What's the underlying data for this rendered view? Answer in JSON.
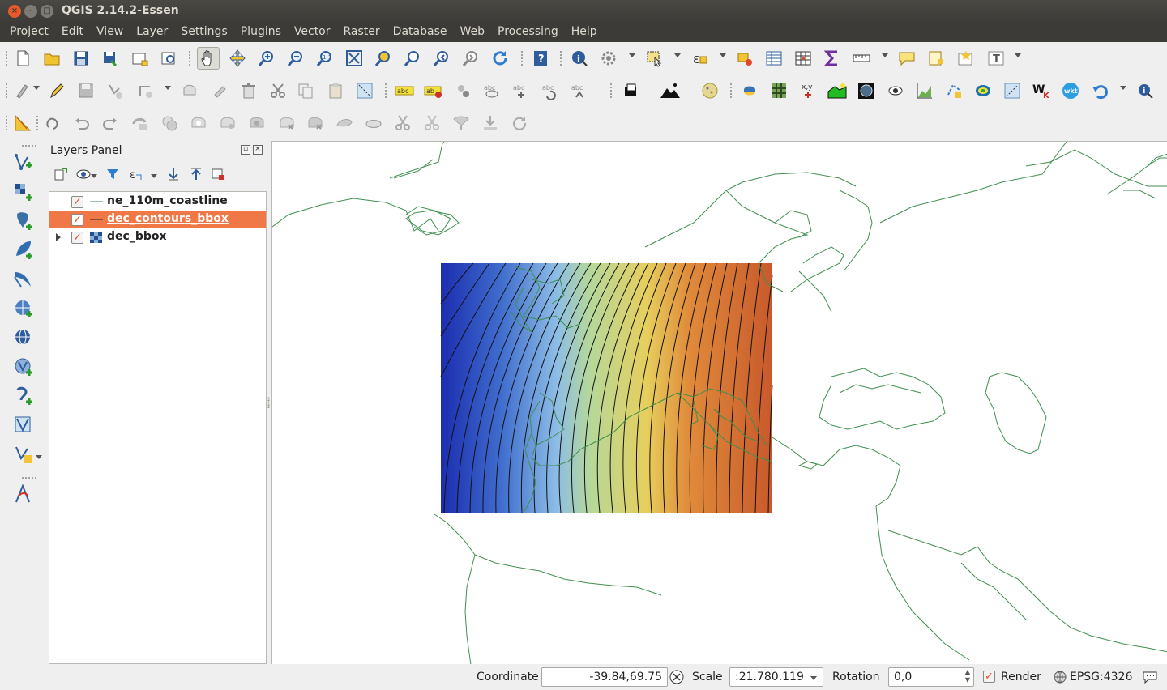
{
  "window": {
    "title": "QGIS 2.14.2-Essen"
  },
  "menu": [
    "Project",
    "Edit",
    "View",
    "Layer",
    "Settings",
    "Plugins",
    "Vector",
    "Raster",
    "Database",
    "Web",
    "Processing",
    "Help"
  ],
  "layers_panel": {
    "title": "Layers Panel",
    "layers": [
      {
        "name": "ne_110m_coastline",
        "checked": true,
        "type": "line",
        "selected": false
      },
      {
        "name": "dec_contours_bbox",
        "checked": true,
        "type": "line",
        "selected": true
      },
      {
        "name": "dec_bbox",
        "checked": true,
        "type": "raster",
        "selected": false,
        "expandable": true
      }
    ]
  },
  "status": {
    "coordinate_label": "Coordinate",
    "coordinate_value": "-39.84,69.75",
    "scale_label": "Scale",
    "scale_value": ":21.780.119",
    "rotation_label": "Rotation",
    "rotation_value": "0,0",
    "render_label": "Render",
    "render_checked": true,
    "crs": "EPSG:4326"
  },
  "colors": {
    "selection": "#f07746",
    "coastline": "#3f8f4f",
    "titlebar": "#3c3b37"
  }
}
